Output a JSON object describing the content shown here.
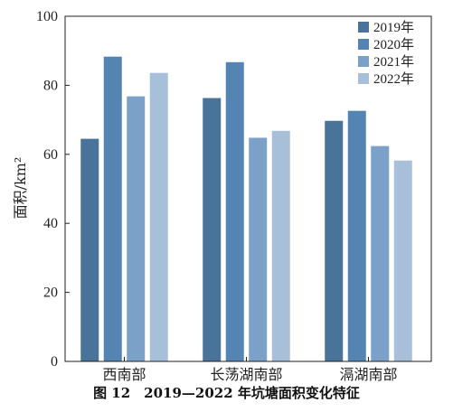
{
  "chart_data": {
    "type": "bar",
    "categories": [
      "西南部",
      "长荡湖南部",
      "滆湖南部"
    ],
    "series": [
      {
        "name": "2019年",
        "values": [
          64.5,
          76.3,
          69.7
        ]
      },
      {
        "name": "2020年",
        "values": [
          88.3,
          86.7,
          72.6
        ]
      },
      {
        "name": "2021年",
        "values": [
          76.8,
          64.8,
          62.4
        ]
      },
      {
        "name": "2022年",
        "values": [
          83.6,
          66.8,
          58.2
        ]
      }
    ],
    "ylabel": "面积/km²",
    "ylim": [
      0,
      100
    ],
    "yticks": [
      0,
      20,
      40,
      60,
      80,
      100
    ],
    "legend_position": "top-right",
    "colors": [
      "#4a7399",
      "#5484b1",
      "#7ba1c9",
      "#a8bfd9"
    ]
  },
  "caption": "图 12　2019—2022 年坑塘面积变化特征"
}
